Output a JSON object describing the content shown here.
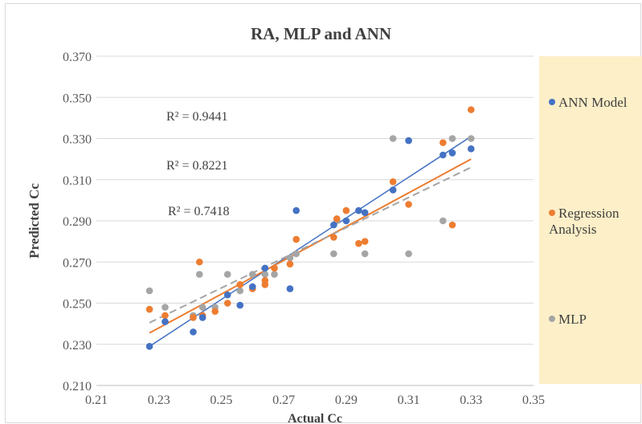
{
  "chart_data": {
    "type": "scatter",
    "title": "RA, MLP and ANN",
    "xlabel": "Actual Cc",
    "ylabel": "Predicted Cc",
    "xlim": [
      0.21,
      0.35
    ],
    "ylim": [
      0.21,
      0.37
    ],
    "x_ticks": [
      "0.21",
      "0.23",
      "0.25",
      "0.27",
      "0.29",
      "0.31",
      "0.33",
      "0.35"
    ],
    "y_ticks": [
      "0.210",
      "0.230",
      "0.250",
      "0.270",
      "0.290",
      "0.310",
      "0.330",
      "0.350",
      "0.370"
    ],
    "grid": "horizontal",
    "legend_position": "right",
    "r2_labels": [
      "R² = 0.9441",
      "R² = 0.8221",
      "R² = 0.7418"
    ],
    "series": [
      {
        "name": "ANN Model",
        "color": "#4472c4",
        "points": [
          [
            0.227,
            0.229
          ],
          [
            0.232,
            0.241
          ],
          [
            0.241,
            0.236
          ],
          [
            0.244,
            0.243
          ],
          [
            0.252,
            0.254
          ],
          [
            0.256,
            0.249
          ],
          [
            0.26,
            0.258
          ],
          [
            0.264,
            0.267
          ],
          [
            0.272,
            0.257
          ],
          [
            0.274,
            0.295
          ],
          [
            0.286,
            0.288
          ],
          [
            0.29,
            0.29
          ],
          [
            0.294,
            0.295
          ],
          [
            0.296,
            0.294
          ],
          [
            0.305,
            0.305
          ],
          [
            0.31,
            0.329
          ],
          [
            0.321,
            0.322
          ],
          [
            0.324,
            0.323
          ],
          [
            0.33,
            0.325
          ]
        ],
        "trendline": {
          "x": [
            0.227,
            0.33
          ],
          "y": [
            0.229,
            0.331
          ],
          "style": "solid"
        }
      },
      {
        "name": "Regression Analysis",
        "color": "#ed7d31",
        "points": [
          [
            0.227,
            0.247
          ],
          [
            0.232,
            0.244
          ],
          [
            0.241,
            0.243
          ],
          [
            0.243,
            0.27
          ],
          [
            0.244,
            0.244
          ],
          [
            0.248,
            0.246
          ],
          [
            0.252,
            0.25
          ],
          [
            0.256,
            0.259
          ],
          [
            0.26,
            0.257
          ],
          [
            0.264,
            0.259
          ],
          [
            0.264,
            0.261
          ],
          [
            0.267,
            0.267
          ],
          [
            0.272,
            0.269
          ],
          [
            0.274,
            0.281
          ],
          [
            0.286,
            0.282
          ],
          [
            0.287,
            0.291
          ],
          [
            0.29,
            0.295
          ],
          [
            0.294,
            0.279
          ],
          [
            0.296,
            0.28
          ],
          [
            0.305,
            0.309
          ],
          [
            0.31,
            0.298
          ],
          [
            0.321,
            0.328
          ],
          [
            0.324,
            0.288
          ],
          [
            0.33,
            0.344
          ]
        ],
        "trendline": {
          "x": [
            0.227,
            0.33
          ],
          "y": [
            0.2355,
            0.32
          ],
          "style": "solid"
        }
      },
      {
        "name": "MLP",
        "color": "#a5a5a5",
        "points": [
          [
            0.227,
            0.256
          ],
          [
            0.232,
            0.248
          ],
          [
            0.241,
            0.244
          ],
          [
            0.243,
            0.264
          ],
          [
            0.244,
            0.248
          ],
          [
            0.248,
            0.248
          ],
          [
            0.252,
            0.264
          ],
          [
            0.256,
            0.256
          ],
          [
            0.26,
            0.264
          ],
          [
            0.264,
            0.264
          ],
          [
            0.267,
            0.264
          ],
          [
            0.272,
            0.272
          ],
          [
            0.274,
            0.274
          ],
          [
            0.286,
            0.274
          ],
          [
            0.287,
            0.29
          ],
          [
            0.29,
            0.29
          ],
          [
            0.296,
            0.274
          ],
          [
            0.305,
            0.33
          ],
          [
            0.31,
            0.274
          ],
          [
            0.321,
            0.29
          ],
          [
            0.324,
            0.33
          ],
          [
            0.33,
            0.33
          ]
        ],
        "trendline": {
          "x": [
            0.227,
            0.33
          ],
          "y": [
            0.2405,
            0.316
          ],
          "style": "dashed"
        }
      }
    ]
  }
}
